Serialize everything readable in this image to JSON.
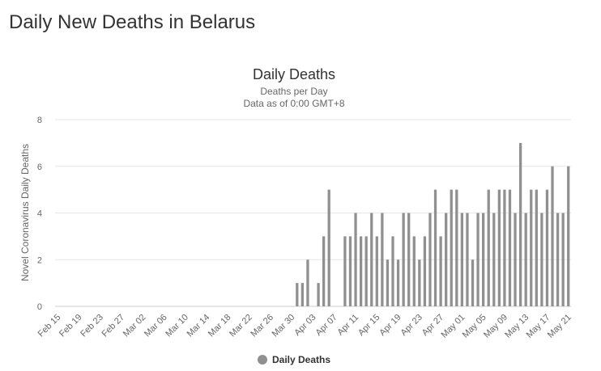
{
  "page": {
    "title": "Daily New Deaths in Belarus"
  },
  "legend": {
    "label": "Daily Deaths"
  },
  "colors": {
    "bar": "#909090",
    "grid": "#e6e6e6",
    "text": "#333333",
    "muted": "#666666"
  },
  "chart_data": {
    "type": "bar",
    "title": "Daily Deaths",
    "subtitle": "Deaths per Day",
    "subtitle2": "Data as of 0:00 GMT+8",
    "xlabel": "",
    "ylabel": "Novel Coronavirus Daily Deaths",
    "ylim": [
      0,
      8
    ],
    "yticks": [
      0,
      2,
      4,
      6,
      8
    ],
    "grid": true,
    "legend_position": "bottom",
    "tick_labels": [
      "Feb 15",
      "Feb 19",
      "Feb 23",
      "Feb 27",
      "Mar 02",
      "Mar 06",
      "Mar 10",
      "Mar 14",
      "Mar 18",
      "Mar 22",
      "Mar 26",
      "Mar 30",
      "Apr 03",
      "Apr 07",
      "Apr 11",
      "Apr 15",
      "Apr 19",
      "Apr 23",
      "Apr 27",
      "May 01",
      "May 05",
      "May 09",
      "May 13",
      "May 17",
      "May 21"
    ],
    "categories": [
      "Feb 15",
      "Feb 16",
      "Feb 17",
      "Feb 18",
      "Feb 19",
      "Feb 20",
      "Feb 21",
      "Feb 22",
      "Feb 23",
      "Feb 24",
      "Feb 25",
      "Feb 26",
      "Feb 27",
      "Feb 28",
      "Feb 29",
      "Mar 01",
      "Mar 02",
      "Mar 03",
      "Mar 04",
      "Mar 05",
      "Mar 06",
      "Mar 07",
      "Mar 08",
      "Mar 09",
      "Mar 10",
      "Mar 11",
      "Mar 12",
      "Mar 13",
      "Mar 14",
      "Mar 15",
      "Mar 16",
      "Mar 17",
      "Mar 18",
      "Mar 19",
      "Mar 20",
      "Mar 21",
      "Mar 22",
      "Mar 23",
      "Mar 24",
      "Mar 25",
      "Mar 26",
      "Mar 27",
      "Mar 28",
      "Mar 29",
      "Mar 30",
      "Mar 31",
      "Apr 01",
      "Apr 02",
      "Apr 03",
      "Apr 04",
      "Apr 05",
      "Apr 06",
      "Apr 07",
      "Apr 08",
      "Apr 09",
      "Apr 10",
      "Apr 11",
      "Apr 12",
      "Apr 13",
      "Apr 14",
      "Apr 15",
      "Apr 16",
      "Apr 17",
      "Apr 18",
      "Apr 19",
      "Apr 20",
      "Apr 21",
      "Apr 22",
      "Apr 23",
      "Apr 24",
      "Apr 25",
      "Apr 26",
      "Apr 27",
      "Apr 28",
      "Apr 29",
      "Apr 30",
      "May 01",
      "May 02",
      "May 03",
      "May 04",
      "May 05",
      "May 06",
      "May 07",
      "May 08",
      "May 09",
      "May 10",
      "May 11",
      "May 12",
      "May 13",
      "May 14",
      "May 15",
      "May 16",
      "May 17",
      "May 18",
      "May 19",
      "May 20",
      "May 21"
    ],
    "series": [
      {
        "name": "Daily Deaths",
        "values": [
          0,
          0,
          0,
          0,
          0,
          0,
          0,
          0,
          0,
          0,
          0,
          0,
          0,
          0,
          0,
          0,
          0,
          0,
          0,
          0,
          0,
          0,
          0,
          0,
          0,
          0,
          0,
          0,
          0,
          0,
          0,
          0,
          0,
          0,
          0,
          0,
          0,
          0,
          0,
          0,
          0,
          0,
          0,
          0,
          0,
          1,
          1,
          2,
          0,
          1,
          3,
          5,
          0,
          0,
          3,
          3,
          4,
          3,
          3,
          4,
          3,
          4,
          2,
          3,
          2,
          4,
          4,
          3,
          2,
          3,
          4,
          5,
          3,
          4,
          5,
          5,
          4,
          4,
          2,
          4,
          4,
          5,
          4,
          5,
          5,
          5,
          4,
          7,
          4,
          5,
          5,
          4,
          5,
          6,
          4,
          4,
          6
        ]
      }
    ]
  }
}
